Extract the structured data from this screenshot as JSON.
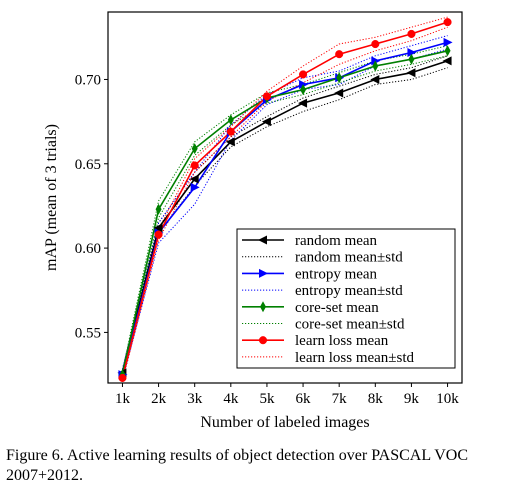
{
  "caption": "Figure 6. Active learning results of object detection over PASCAL VOC 2007+2012.",
  "chart_data": {
    "type": "line",
    "title": "",
    "xlabel": "Number of labeled images",
    "ylabel": "mAP (mean of 3 trials)",
    "categories": [
      "1k",
      "2k",
      "3k",
      "4k",
      "5k",
      "6k",
      "7k",
      "8k",
      "9k",
      "10k"
    ],
    "x": [
      1,
      2,
      3,
      4,
      5,
      6,
      7,
      8,
      9,
      10
    ],
    "xlim": [
      0.6,
      10.4
    ],
    "ylim": [
      0.52,
      0.74
    ],
    "yticks": [
      0.55,
      0.6,
      0.65,
      0.7
    ],
    "ytick_labels": [
      "0.55",
      "0.60",
      "0.65",
      "0.70"
    ],
    "grid": false,
    "legend_position": "lower-right",
    "series": [
      {
        "name": "random mean",
        "std_name": "random mean±std",
        "color": "#000000",
        "marker": "triangle-left",
        "values": [
          0.526,
          0.612,
          0.641,
          0.663,
          0.675,
          0.686,
          0.692,
          0.7,
          0.704,
          0.711
        ],
        "upper": [
          0.528,
          0.615,
          0.645,
          0.666,
          0.678,
          0.689,
          0.696,
          0.703,
          0.707,
          0.714
        ],
        "lower": [
          0.524,
          0.609,
          0.637,
          0.66,
          0.672,
          0.681,
          0.688,
          0.697,
          0.7,
          0.707
        ]
      },
      {
        "name": "entropy mean",
        "std_name": "entropy mean±std",
        "color": "#0000ff",
        "marker": "triangle-right",
        "values": [
          0.525,
          0.609,
          0.636,
          0.669,
          0.688,
          0.697,
          0.701,
          0.711,
          0.716,
          0.722
        ],
        "upper": [
          0.528,
          0.615,
          0.645,
          0.673,
          0.691,
          0.701,
          0.705,
          0.714,
          0.72,
          0.726
        ],
        "lower": [
          0.522,
          0.603,
          0.626,
          0.664,
          0.685,
          0.694,
          0.697,
          0.708,
          0.712,
          0.718
        ]
      },
      {
        "name": "core-set mean",
        "std_name": "core-set mean±std",
        "color": "#008000",
        "marker": "thin-diamond",
        "values": [
          0.525,
          0.623,
          0.659,
          0.676,
          0.689,
          0.694,
          0.701,
          0.708,
          0.712,
          0.717
        ],
        "upper": [
          0.527,
          0.628,
          0.663,
          0.679,
          0.692,
          0.697,
          0.704,
          0.711,
          0.715,
          0.72
        ],
        "lower": [
          0.523,
          0.618,
          0.655,
          0.673,
          0.686,
          0.691,
          0.698,
          0.705,
          0.709,
          0.714
        ]
      },
      {
        "name": "learn loss mean",
        "std_name": "learn loss mean±std",
        "color": "#ff0000",
        "marker": "circle",
        "values": [
          0.523,
          0.608,
          0.649,
          0.669,
          0.69,
          0.703,
          0.715,
          0.721,
          0.727,
          0.734
        ],
        "upper": [
          0.525,
          0.611,
          0.653,
          0.672,
          0.693,
          0.708,
          0.721,
          0.725,
          0.731,
          0.737
        ],
        "lower": [
          0.521,
          0.605,
          0.645,
          0.666,
          0.687,
          0.698,
          0.709,
          0.717,
          0.723,
          0.731
        ]
      }
    ]
  }
}
